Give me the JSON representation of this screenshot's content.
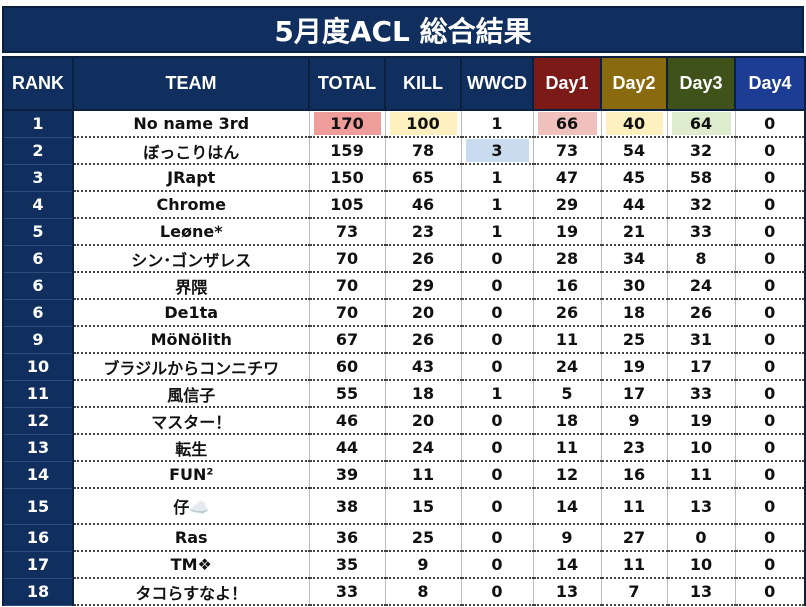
{
  "title": "5月度ACL 総合結果",
  "colors": {
    "header_navy": "#102f5e",
    "day1": "#7b1a16",
    "day2": "#8a6a0e",
    "day3": "#3e5219",
    "day4": "#1d3c94",
    "hl_total": "#ee9d9b",
    "hl_kill": "#fff0c0",
    "hl_wwcd": "#c9dcef",
    "hl_day1": "#f0c0bd",
    "hl_day2": "#fff0c0",
    "hl_day3": "#dceccd"
  },
  "headers": [
    "RANK",
    "TEAM",
    "TOTAL",
    "KILL",
    "WWCD",
    "Day1",
    "Day2",
    "Day3",
    "Day4"
  ],
  "rows": [
    {
      "rank": "1",
      "team": "No name 3rd",
      "total": "170",
      "kill": "100",
      "wwcd": "1",
      "day1": "66",
      "day2": "40",
      "day3": "64",
      "day4": "0"
    },
    {
      "rank": "2",
      "team": "ぼっこりはん",
      "total": "159",
      "kill": "78",
      "wwcd": "3",
      "day1": "73",
      "day2": "54",
      "day3": "32",
      "day4": "0"
    },
    {
      "rank": "3",
      "team": "JRapt",
      "total": "150",
      "kill": "65",
      "wwcd": "1",
      "day1": "47",
      "day2": "45",
      "day3": "58",
      "day4": "0"
    },
    {
      "rank": "4",
      "team": "Chrome",
      "total": "105",
      "kill": "46",
      "wwcd": "1",
      "day1": "29",
      "day2": "44",
      "day3": "32",
      "day4": "0"
    },
    {
      "rank": "5",
      "team": "Leøne*",
      "total": "73",
      "kill": "23",
      "wwcd": "1",
      "day1": "19",
      "day2": "21",
      "day3": "33",
      "day4": "0"
    },
    {
      "rank": "6",
      "team": "シン･ゴンザレス",
      "total": "70",
      "kill": "26",
      "wwcd": "0",
      "day1": "28",
      "day2": "34",
      "day3": "8",
      "day4": "0"
    },
    {
      "rank": "6",
      "team": "界隈",
      "total": "70",
      "kill": "29",
      "wwcd": "0",
      "day1": "16",
      "day2": "30",
      "day3": "24",
      "day4": "0"
    },
    {
      "rank": "6",
      "team": "De1ta",
      "total": "70",
      "kill": "20",
      "wwcd": "0",
      "day1": "26",
      "day2": "18",
      "day3": "26",
      "day4": "0"
    },
    {
      "rank": "9",
      "team": "MöNölith",
      "total": "67",
      "kill": "26",
      "wwcd": "0",
      "day1": "11",
      "day2": "25",
      "day3": "31",
      "day4": "0"
    },
    {
      "rank": "10",
      "team": "ブラジルからコンニチワ",
      "total": "60",
      "kill": "43",
      "wwcd": "0",
      "day1": "24",
      "day2": "19",
      "day3": "17",
      "day4": "0"
    },
    {
      "rank": "11",
      "team": "風信子",
      "total": "55",
      "kill": "18",
      "wwcd": "1",
      "day1": "5",
      "day2": "17",
      "day3": "33",
      "day4": "0"
    },
    {
      "rank": "12",
      "team": "マスター！",
      "total": "46",
      "kill": "20",
      "wwcd": "0",
      "day1": "18",
      "day2": "9",
      "day3": "19",
      "day4": "0"
    },
    {
      "rank": "13",
      "team": "転生",
      "total": "44",
      "kill": "24",
      "wwcd": "0",
      "day1": "11",
      "day2": "23",
      "day3": "10",
      "day4": "0"
    },
    {
      "rank": "14",
      "team": "FUN²",
      "total": "39",
      "kill": "11",
      "wwcd": "0",
      "day1": "12",
      "day2": "16",
      "day3": "11",
      "day4": "0"
    },
    {
      "rank": "15",
      "team": "仔☁️",
      "total": "38",
      "kill": "15",
      "wwcd": "0",
      "day1": "14",
      "day2": "11",
      "day3": "13",
      "day4": "0"
    },
    {
      "rank": "16",
      "team": "Ras",
      "total": "36",
      "kill": "25",
      "wwcd": "0",
      "day1": "9",
      "day2": "27",
      "day3": "0",
      "day4": "0"
    },
    {
      "rank": "17",
      "team": "TM❖",
      "total": "35",
      "kill": "9",
      "wwcd": "0",
      "day1": "14",
      "day2": "11",
      "day3": "10",
      "day4": "0"
    },
    {
      "rank": "18",
      "team": "タコらすなよ！",
      "total": "33",
      "kill": "8",
      "wwcd": "0",
      "day1": "13",
      "day2": "7",
      "day3": "13",
      "day4": "0"
    }
  ]
}
